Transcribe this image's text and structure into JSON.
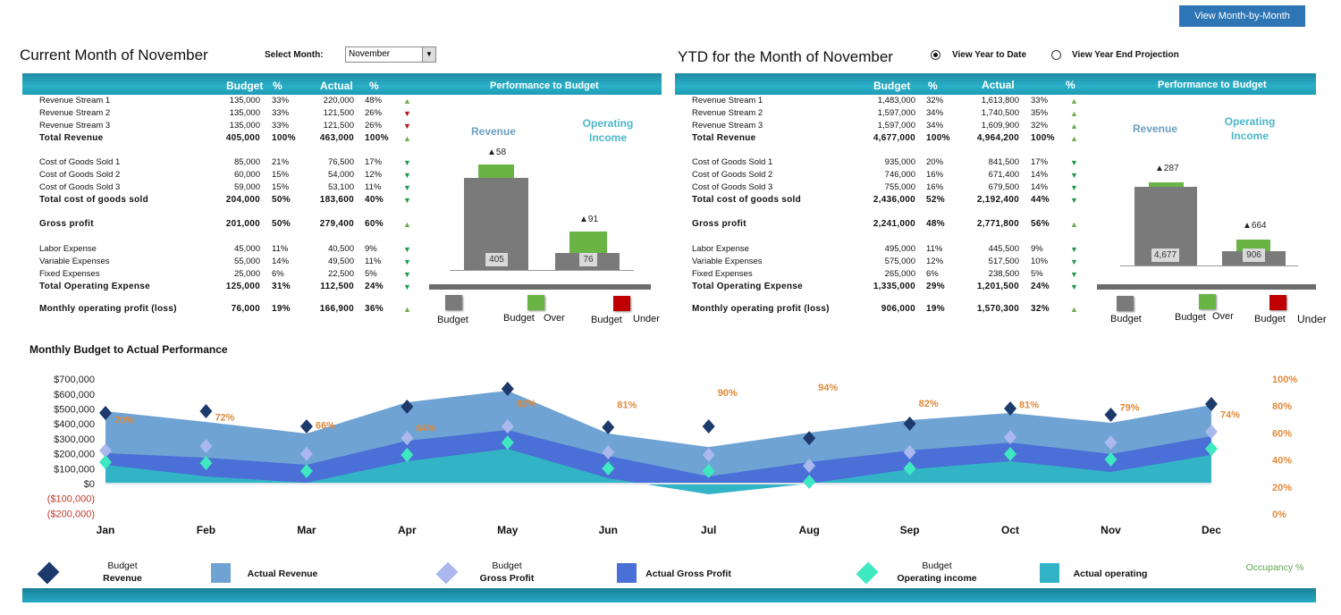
{
  "header": {
    "view_month_button": "View Month-by-Month",
    "current_title": "Current Month of November",
    "select_month_label": "Select Month:",
    "select_month_value": "November",
    "ytd_title": "YTD for the Month of November",
    "radio_ytd": "View Year to Date",
    "radio_projection": "View Year End Projection",
    "radio_selected": "View Year to Date"
  },
  "table_headers": {
    "budget": "Budget",
    "pct": "%",
    "actual": "Actual",
    "pct2": "%",
    "performance": "Performance to  Budget"
  },
  "left_table": [
    {
      "label": "Revenue Stream 1",
      "budget": "135,000",
      "bpct": "33%",
      "actual": "220,000",
      "apct": "48%",
      "trend": "up-green",
      "bold": false
    },
    {
      "label": "Revenue Stream 2",
      "budget": "135,000",
      "bpct": "33%",
      "actual": "121,500",
      "apct": "26%",
      "trend": "down-red",
      "bold": false
    },
    {
      "label": "Revenue Stream 3",
      "budget": "135,000",
      "bpct": "33%",
      "actual": "121,500",
      "apct": "26%",
      "trend": "down-red",
      "bold": false
    },
    {
      "label": "Total Revenue",
      "budget": "405,000",
      "bpct": "100%",
      "actual": "463,000",
      "apct": "100%",
      "trend": "up-green",
      "bold": true
    },
    {
      "label": "Cost of Goods Sold 1",
      "budget": "85,000",
      "bpct": "21%",
      "actual": "76,500",
      "apct": "17%",
      "trend": "down-green",
      "bold": false
    },
    {
      "label": "Cost of Goods Sold 2",
      "budget": "60,000",
      "bpct": "15%",
      "actual": "54,000",
      "apct": "12%",
      "trend": "down-green",
      "bold": false
    },
    {
      "label": "Cost of Goods Sold 3",
      "budget": "59,000",
      "bpct": "15%",
      "actual": "53,100",
      "apct": "11%",
      "trend": "down-green",
      "bold": false
    },
    {
      "label": "Total cost of goods sold",
      "budget": "204,000",
      "bpct": "50%",
      "actual": "183,600",
      "apct": "40%",
      "trend": "down-green",
      "bold": true
    },
    {
      "label": "Gross profit",
      "budget": "201,000",
      "bpct": "50%",
      "actual": "279,400",
      "apct": "60%",
      "trend": "up-green",
      "bold": true
    },
    {
      "label": "Labor Expense",
      "budget": "45,000",
      "bpct": "11%",
      "actual": "40,500",
      "apct": "9%",
      "trend": "down-green",
      "bold": false
    },
    {
      "label": "Variable Expenses",
      "budget": "55,000",
      "bpct": "14%",
      "actual": "49,500",
      "apct": "11%",
      "trend": "down-green",
      "bold": false
    },
    {
      "label": "Fixed Expenses",
      "budget": "25,000",
      "bpct": "6%",
      "actual": "22,500",
      "apct": "5%",
      "trend": "down-green",
      "bold": false
    },
    {
      "label": "Total Operating Expense",
      "budget": "125,000",
      "bpct": "31%",
      "actual": "112,500",
      "apct": "24%",
      "trend": "down-green",
      "bold": true
    },
    {
      "label": "Monthly operating profit (loss)",
      "budget": "76,000",
      "bpct": "19%",
      "actual": "166,900",
      "apct": "36%",
      "trend": "up-green",
      "bold": true
    }
  ],
  "right_table": [
    {
      "label": "Revenue Stream 1",
      "budget": "1,483,000",
      "bpct": "32%",
      "actual": "1,613,800",
      "apct": "33%",
      "trend": "up-green",
      "bold": false
    },
    {
      "label": "Revenue Stream 2",
      "budget": "1,597,000",
      "bpct": "34%",
      "actual": "1,740,500",
      "apct": "35%",
      "trend": "up-green",
      "bold": false
    },
    {
      "label": "Revenue Stream 3",
      "budget": "1,597,000",
      "bpct": "34%",
      "actual": "1,609,900",
      "apct": "32%",
      "trend": "up-green",
      "bold": false
    },
    {
      "label": "Total Revenue",
      "budget": "4,677,000",
      "bpct": "100%",
      "actual": "4,964,200",
      "apct": "100%",
      "trend": "up-green",
      "bold": true
    },
    {
      "label": "Cost of Goods Sold 1",
      "budget": "935,000",
      "bpct": "20%",
      "actual": "841,500",
      "apct": "17%",
      "trend": "down-green",
      "bold": false
    },
    {
      "label": "Cost of Goods Sold 2",
      "budget": "746,000",
      "bpct": "16%",
      "actual": "671,400",
      "apct": "14%",
      "trend": "down-green",
      "bold": false
    },
    {
      "label": "Cost of Goods Sold 3",
      "budget": "755,000",
      "bpct": "16%",
      "actual": "679,500",
      "apct": "14%",
      "trend": "down-green",
      "bold": false
    },
    {
      "label": "Total cost of goods sold",
      "budget": "2,436,000",
      "bpct": "52%",
      "actual": "2,192,400",
      "apct": "44%",
      "trend": "down-green",
      "bold": true
    },
    {
      "label": "Gross profit",
      "budget": "2,241,000",
      "bpct": "48%",
      "actual": "2,771,800",
      "apct": "56%",
      "trend": "up-green",
      "bold": true
    },
    {
      "label": "Labor Expense",
      "budget": "495,000",
      "bpct": "11%",
      "actual": "445,500",
      "apct": "9%",
      "trend": "down-green",
      "bold": false
    },
    {
      "label": "Variable Expenses",
      "budget": "575,000",
      "bpct": "12%",
      "actual": "517,500",
      "apct": "10%",
      "trend": "down-green",
      "bold": false
    },
    {
      "label": "Fixed Expenses",
      "budget": "265,000",
      "bpct": "6%",
      "actual": "238,500",
      "apct": "5%",
      "trend": "down-green",
      "bold": false
    },
    {
      "label": "Total Operating Expense",
      "budget": "1,335,000",
      "bpct": "29%",
      "actual": "1,201,500",
      "apct": "24%",
      "trend": "down-green",
      "bold": true
    },
    {
      "label": "Monthly operating profit (loss)",
      "budget": "906,000",
      "bpct": "19%",
      "actual": "1,570,300",
      "apct": "32%",
      "trend": "up-green",
      "bold": true
    }
  ],
  "perf_left": {
    "revenue_title": "Revenue",
    "op_title_1": "Operating",
    "op_title_2": "Income",
    "revenue_budget": "405",
    "revenue_delta": "▲58",
    "op_budget": "76",
    "op_delta": "▲91"
  },
  "perf_right": {
    "revenue_title": "Revenue",
    "op_title_1": "Operating",
    "op_title_2": "Income",
    "revenue_budget": "4,677",
    "revenue_delta": "▲287",
    "op_budget": "906",
    "op_delta": "▲664"
  },
  "perf_legend": {
    "budget": "Budget",
    "over_1": "Budget",
    "over_2": "Over",
    "under_1": "Budget",
    "under_2": "Under"
  },
  "colors": {
    "band": "#2ab0c7",
    "budget_gray": "#7a7a7a",
    "over_green": "#6ab446",
    "under_red": "#c00000",
    "actual_revenue": "#6fa3d4",
    "actual_gp": "#4a6fd6",
    "actual_op": "#33b4c6",
    "budget_revenue": "#1c3a6b",
    "budget_gp": "#aab8ee",
    "budget_op": "#3ee8c0",
    "occupancy": "#e08a3a"
  },
  "chart_title": "Monthly Budget to Actual Performance",
  "chart_data": {
    "type": "area",
    "categories": [
      "Jan",
      "Feb",
      "Mar",
      "Apr",
      "May",
      "Jun",
      "Jul",
      "Aug",
      "Sep",
      "Oct",
      "Nov",
      "Dec"
    ],
    "y_ticks": [
      "$700,000",
      "$600,000",
      "$500,000",
      "$400,000",
      "$300,000",
      "$200,000",
      "$100,000",
      "$0",
      "($100,000)",
      "($200,000)"
    ],
    "y2_ticks": [
      "100%",
      "80%",
      "60%",
      "40%",
      "20%",
      "0%"
    ],
    "ylim": [
      -200000,
      700000
    ],
    "y2lim": [
      0,
      100
    ],
    "series": [
      {
        "name": "Actual Revenue",
        "kind": "area",
        "values": [
          485000,
          413000,
          335000,
          545000,
          623000,
          335000,
          245000,
          341000,
          425000,
          473000,
          407000,
          527000
        ]
      },
      {
        "name": "Actual Gross Profit",
        "kind": "area",
        "values": [
          204000,
          174000,
          126000,
          287000,
          359000,
          186000,
          48000,
          144000,
          222000,
          275000,
          198000,
          317000
        ]
      },
      {
        "name": "Actual operating",
        "kind": "area",
        "values": [
          126000,
          48000,
          6000,
          150000,
          233000,
          36000,
          -72000,
          0,
          96000,
          150000,
          78000,
          192000
        ]
      },
      {
        "name": "Budget Revenue",
        "kind": "marker",
        "values": [
          473000,
          485000,
          383000,
          515000,
          635000,
          377000,
          383000,
          305000,
          401000,
          503000,
          461000,
          533000
        ]
      },
      {
        "name": "Budget Gross Profit",
        "kind": "marker",
        "values": [
          221000,
          251000,
          198000,
          305000,
          383000,
          210000,
          192000,
          120000,
          210000,
          311000,
          275000,
          347000
        ]
      },
      {
        "name": "Budget Operating income",
        "kind": "marker",
        "values": [
          144000,
          138000,
          84000,
          192000,
          275000,
          102000,
          84000,
          12000,
          102000,
          198000,
          162000,
          233000
        ]
      },
      {
        "name": "Occupancy %",
        "kind": "label",
        "axis": "right",
        "values": [
          70,
          72,
          66,
          64,
          82,
          81,
          90,
          94,
          82,
          81,
          79,
          74
        ],
        "labels": [
          "70%",
          "72%",
          "66%",
          "64%",
          "82%",
          "81%",
          "90%",
          "94%",
          "82%",
          "81%",
          "79%",
          "74%"
        ]
      }
    ]
  },
  "chart_legend": [
    {
      "line1": "Budget",
      "line2": "Revenue",
      "icon": "diamond-icon"
    },
    {
      "line1": "Actual Revenue",
      "icon": "square-icon"
    },
    {
      "line1": "Budget",
      "line2": "Gross Profit",
      "icon": "diamond-icon"
    },
    {
      "line1": "Actual Gross Profit",
      "icon": "square-icon"
    },
    {
      "line1": "Budget",
      "line2": "Operating income",
      "icon": "diamond-icon"
    },
    {
      "line1": "Actual operating",
      "icon": "square-icon"
    },
    {
      "line1": "Occupancy %"
    }
  ]
}
